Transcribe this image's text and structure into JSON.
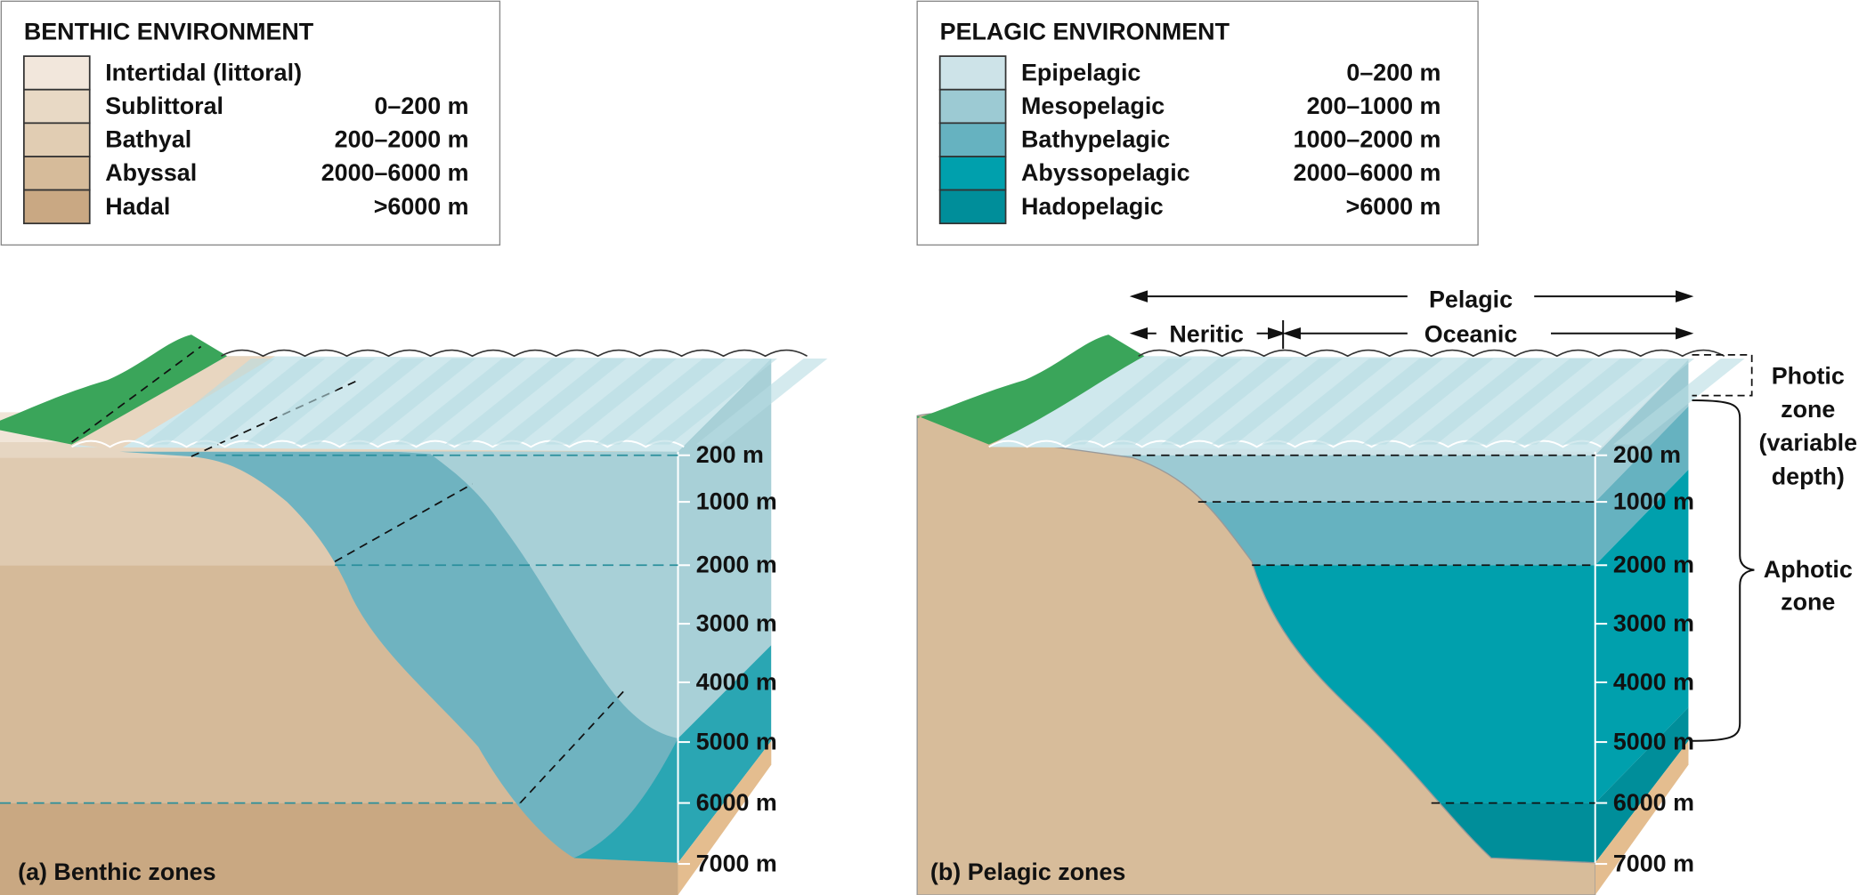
{
  "benthic_legend": {
    "title": "BENTHIC ENVIRONMENT",
    "items": [
      {
        "label": "Intertidal (littoral)",
        "color": "#f2e7dc"
      },
      {
        "label": "Sublittoral",
        "range": "0–200 m",
        "color": "#e8d9c5"
      },
      {
        "label": "Bathyal",
        "range": "200–2000 m",
        "color": "#e1cdb3"
      },
      {
        "label": "Abyssal",
        "range": "2000–6000 m",
        "color": "#d6bb9a"
      },
      {
        "label": "Hadal",
        "range": ">6000 m",
        "color": "#c9a883"
      }
    ]
  },
  "pelagic_legend": {
    "title": "PELAGIC ENVIRONMENT",
    "items": [
      {
        "label": "Epipelagic",
        "range": "0–200 m",
        "color": "#cde3e8"
      },
      {
        "label": "Mesopelagic",
        "range": "200–1000 m",
        "color": "#9ccad3"
      },
      {
        "label": "Bathypelagic",
        "range": "1000–2000 m",
        "color": "#66b2c0"
      },
      {
        "label": "Abyssopelagic",
        "range": "2000–6000 m",
        "color": "#00a0ad"
      },
      {
        "label": "Hadopelagic",
        "range": ">6000 m",
        "color": "#008e9a"
      }
    ]
  },
  "panel_a": {
    "caption": "(a) Benthic zones",
    "depth_labels": [
      "200 m",
      "1000 m",
      "2000 m",
      "3000 m",
      "4000 m",
      "5000 m",
      "6000 m",
      "7000 m"
    ]
  },
  "panel_b": {
    "caption": "(b) Pelagic zones",
    "depth_labels": [
      "200 m",
      "1000 m",
      "2000 m",
      "3000 m",
      "4000 m",
      "5000 m",
      "6000 m",
      "7000 m"
    ],
    "pelagic": "Pelagic",
    "neritic": "Neritic",
    "oceanic": "Oceanic",
    "photic_zone": [
      "Photic",
      "zone",
      "(variable",
      "depth)"
    ],
    "aphotic_zone": [
      "Aphotic",
      "zone"
    ]
  }
}
